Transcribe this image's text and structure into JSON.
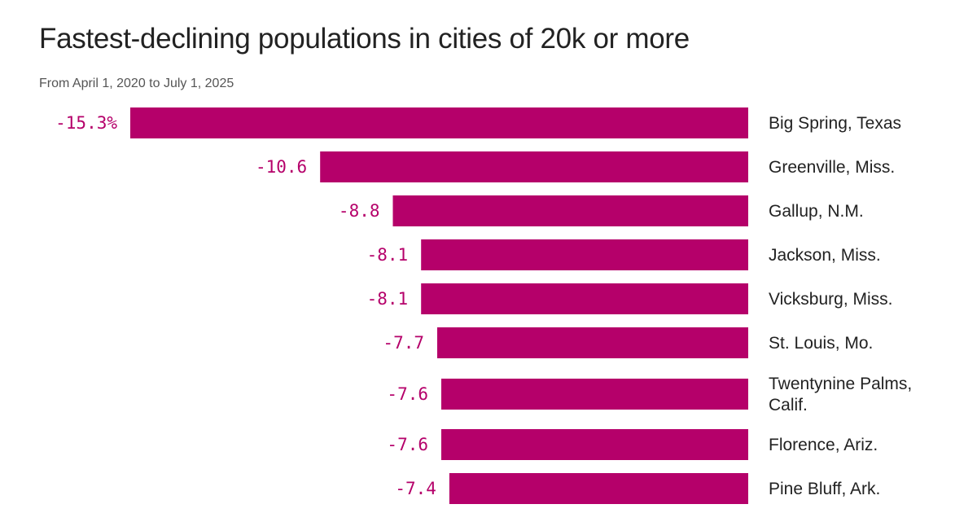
{
  "header": {
    "title": "Fastest-declining populations in cities of 20k or more",
    "subtitle": "From April 1, 2020 to July 1, 2025"
  },
  "colors": {
    "bar": "#b5006a",
    "value_label": "#b5006a",
    "category_label": "#222222"
  },
  "chart_data": {
    "type": "bar",
    "orientation": "horizontal",
    "title": "Fastest-declining populations in cities of 20k or more",
    "subtitle": "From April 1, 2020 to July 1, 2025",
    "xlabel": "",
    "ylabel": "",
    "xlim": [
      -15.3,
      0
    ],
    "grid": false,
    "legend": "none",
    "bars": [
      {
        "category": [
          "Big Spring, Texas"
        ],
        "value": -15.3,
        "value_label": "-15.3%"
      },
      {
        "category": [
          "Greenville, Miss."
        ],
        "value": -10.6,
        "value_label": "-10.6"
      },
      {
        "category": [
          "Gallup, N.M."
        ],
        "value": -8.8,
        "value_label": "-8.8"
      },
      {
        "category": [
          "Jackson, Miss."
        ],
        "value": -8.1,
        "value_label": "-8.1"
      },
      {
        "category": [
          "Vicksburg, Miss."
        ],
        "value": -8.1,
        "value_label": "-8.1"
      },
      {
        "category": [
          "St. Louis, Mo."
        ],
        "value": -7.7,
        "value_label": "-7.7"
      },
      {
        "category": [
          "Twentynine Palms,",
          "Calif."
        ],
        "value": -7.6,
        "value_label": "-7.6"
      },
      {
        "category": [
          "Florence, Ariz."
        ],
        "value": -7.6,
        "value_label": "-7.6"
      },
      {
        "category": [
          "Pine Bluff, Ark."
        ],
        "value": -7.4,
        "value_label": "-7.4"
      }
    ]
  }
}
